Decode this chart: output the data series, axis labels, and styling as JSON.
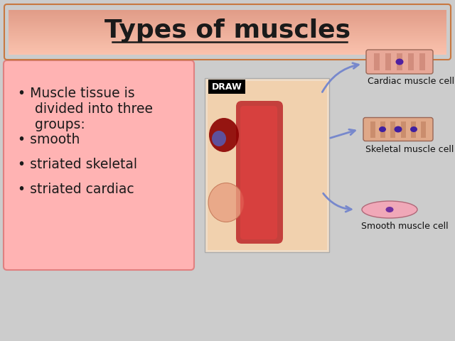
{
  "title": "Types of muscles",
  "title_fontsize": 26,
  "title_color": "#1a1a1a",
  "slide_bg_color": "#cccccc",
  "bullet_box_color": "#ffb3b3",
  "bullet_text_color": "#1a1a1a",
  "draw_label": "DRAW",
  "draw_label_bg": "#000000",
  "draw_label_text": "#ffffff",
  "muscle_labels": [
    "Cardiac muscle cell",
    "Skeletal muscle cell",
    "Smooth muscle cell"
  ]
}
